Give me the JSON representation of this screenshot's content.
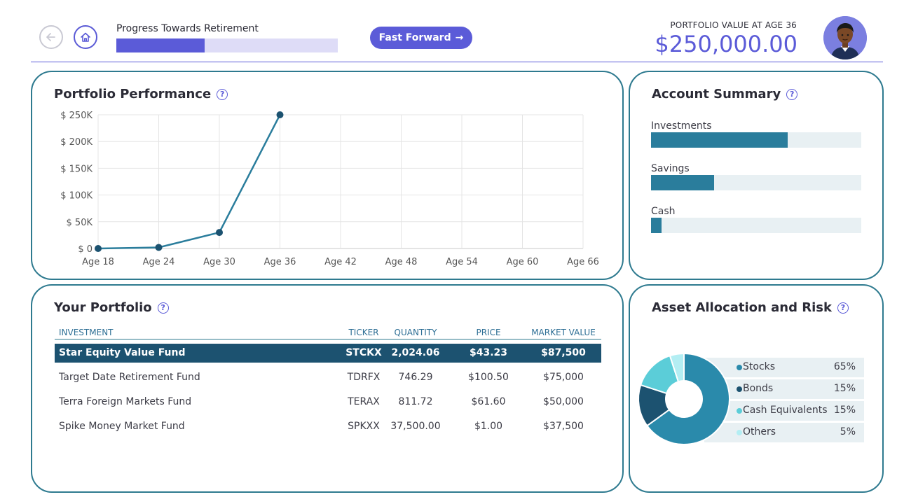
{
  "header": {
    "progress_label": "Progress Towards Retirement",
    "progress_fraction": 0.4,
    "fast_forward_label": "Fast Forward",
    "fast_forward_arrow": "→",
    "portfolio_value_label": "PORTFOLIO VALUE AT AGE 36",
    "portfolio_value": "$250,000.00"
  },
  "performance": {
    "title": "Portfolio Performance",
    "help": "?",
    "chart_data": {
      "type": "line",
      "x": [
        "Age 18",
        "Age 24",
        "Age 30",
        "Age 36"
      ],
      "categories": [
        "Age 18",
        "Age 24",
        "Age 30",
        "Age 36",
        "Age 42",
        "Age 48",
        "Age 54",
        "Age 60",
        "Age 66"
      ],
      "values": [
        0,
        2000,
        30000,
        250000
      ],
      "ylim": [
        0,
        250000
      ],
      "yticks": [
        "$ 0",
        "$ 50K",
        "$ 100K",
        "$ 150K",
        "$ 200K",
        "$ 250K"
      ],
      "ytick_values": [
        0,
        50000,
        100000,
        150000,
        200000,
        250000
      ],
      "grid": true,
      "color": "#2a7d9c"
    }
  },
  "account_summary": {
    "title": "Account Summary",
    "help": "?",
    "items": [
      {
        "label": "Investments",
        "fraction": 0.65
      },
      {
        "label": "Savings",
        "fraction": 0.3
      },
      {
        "label": "Cash",
        "fraction": 0.05
      }
    ]
  },
  "portfolio": {
    "title": "Your Portfolio",
    "help": "?",
    "columns": [
      "INVESTMENT",
      "TICKER",
      "QUANTITY",
      "PRICE",
      "MARKET VALUE"
    ],
    "rows": [
      [
        "Star Equity Value Fund",
        "STCKX",
        "2,024.06",
        "$43.23",
        "$87,500"
      ],
      [
        "Target Date Retirement Fund",
        "TDRFX",
        "746.29",
        "$100.50",
        "$75,000"
      ],
      [
        "Terra Foreign Markets Fund",
        "TERAX",
        "811.72",
        "$61.60",
        "$50,000"
      ],
      [
        "Spike Money Market Fund",
        "SPKXX",
        "37,500.00",
        "$1.00",
        "$37,500"
      ]
    ],
    "selected_row": 0
  },
  "allocation": {
    "title": "Asset Allocation and Risk",
    "help": "?",
    "chart_data": {
      "type": "pie",
      "labels": [
        "Stocks",
        "Bonds",
        "Cash Equivalents",
        "Others"
      ],
      "values": [
        65,
        15,
        15,
        5
      ],
      "display": [
        "65%",
        "15%",
        "15%",
        "5%"
      ],
      "colors": [
        "#2a8aab",
        "#1c5270",
        "#5bcdd8",
        "#b3eef3"
      ]
    }
  }
}
